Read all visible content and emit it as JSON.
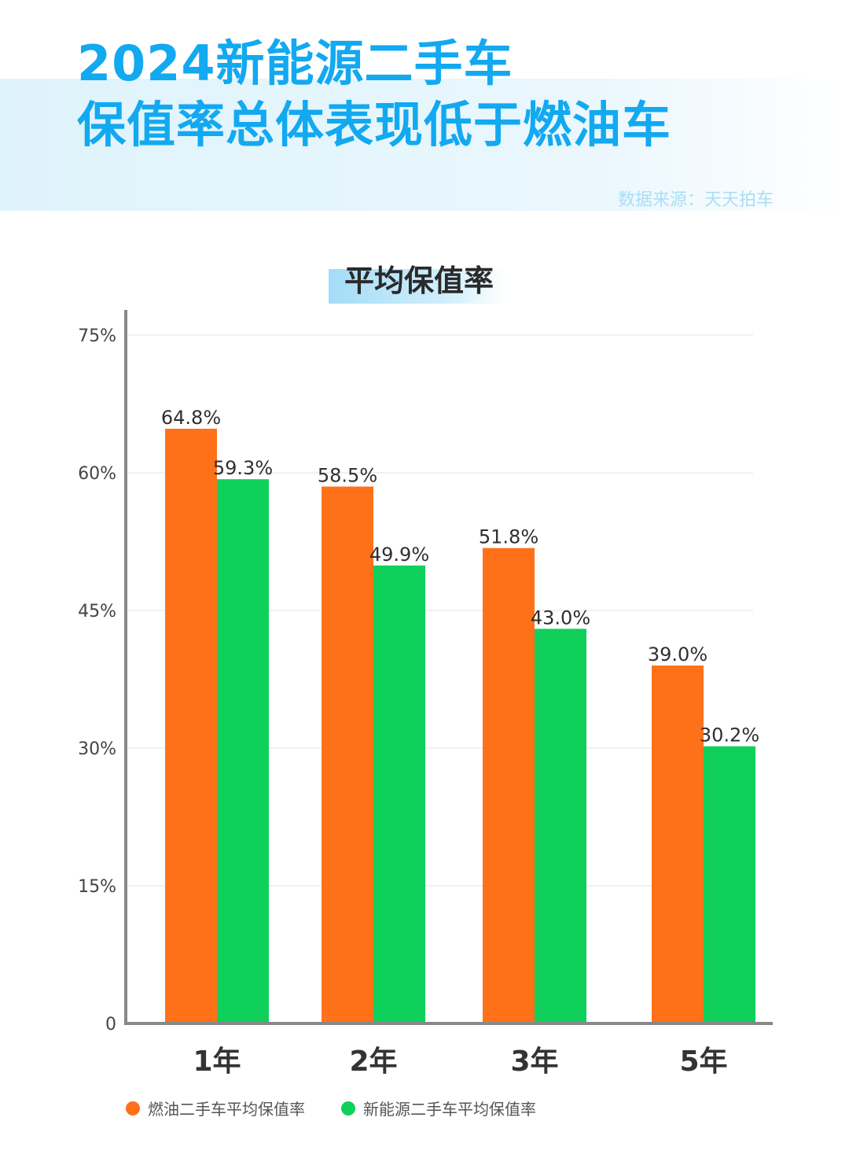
{
  "header": {
    "headline_line1": "2024新能源二手车",
    "headline_line2": "保值率总体表现低于燃油车",
    "source": "数据来源：天天拍车"
  },
  "colors": {
    "accent": "#12a9f0",
    "fuel": "#ff7119",
    "ev": "#10d05c",
    "axis": "#888888",
    "grid": "#e2e2e2"
  },
  "chart_data": {
    "type": "bar",
    "title": "平均保值率",
    "categories": [
      "1年",
      "2年",
      "3年",
      "5年"
    ],
    "series": [
      {
        "name": "燃油二手车平均保值率",
        "values": [
          64.8,
          58.5,
          51.8,
          39.0
        ],
        "labels": [
          "64.8%",
          "58.5%",
          "51.8%",
          "39.0%"
        ]
      },
      {
        "name": "新能源二手车平均保值率",
        "values": [
          59.3,
          49.9,
          43.0,
          30.2
        ],
        "labels": [
          "59.3%",
          "49.9%",
          "43.0%",
          "30.2%"
        ]
      }
    ],
    "ylim": [
      0,
      75
    ],
    "yticks": [
      0,
      15,
      30,
      45,
      60,
      75
    ],
    "ytick_labels": [
      "0",
      "15%",
      "30%",
      "45%",
      "60%",
      "75%"
    ],
    "xlabel": "",
    "ylabel": "",
    "grid": true,
    "legend": "bottom-left"
  }
}
